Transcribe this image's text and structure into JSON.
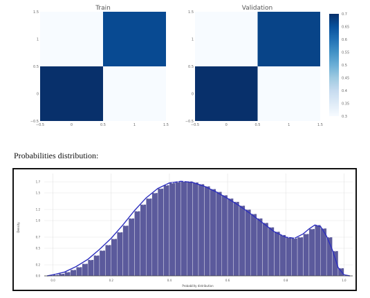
{
  "caption": "Probabilities distribution:",
  "chart_data": [
    {
      "type": "heatmap",
      "title": "Train",
      "x": [
        0,
        1
      ],
      "y": [
        0,
        1
      ],
      "z": [
        [
          0.72,
          0.3
        ],
        [
          0.3,
          0.66
        ]
      ],
      "xlim": [
        -0.5,
        1.5
      ],
      "ylim": [
        -0.5,
        1.5
      ],
      "xticks": [
        "−0.5",
        "0",
        "0.5",
        "1",
        "1.5"
      ],
      "yticks": [
        "−0.5",
        "0",
        "0.5",
        "1",
        "1.5"
      ]
    },
    {
      "type": "heatmap",
      "title": "Validation",
      "x": [
        0,
        1
      ],
      "y": [
        0,
        1
      ],
      "z": [
        [
          0.72,
          0.3
        ],
        [
          0.3,
          0.67
        ]
      ],
      "xlim": [
        -0.5,
        1.5
      ],
      "ylim": [
        -0.5,
        1.5
      ],
      "xticks": [
        "−0.5",
        "0",
        "0.5",
        "1",
        "1.5"
      ],
      "yticks": [
        "−0.5",
        "0",
        "0.5",
        "1",
        "1.5"
      ],
      "colorbar": {
        "range": [
          0.3,
          0.7
        ],
        "ticks": [
          "0.3",
          "0.35",
          "0.4",
          "0.45",
          "0.5",
          "0.55",
          "0.6",
          "0.65",
          "0.7"
        ],
        "colors": [
          "#f7fbff",
          "#deebf7",
          "#c6dbef",
          "#9ecae1",
          "#6baed6",
          "#4292c6",
          "#2171b5",
          "#08519c",
          "#08306b"
        ]
      }
    },
    {
      "type": "bar",
      "title": "",
      "xlabel": "Probability distribution",
      "ylabel": "Density",
      "xlim": [
        -0.03,
        1.03
      ],
      "ylim": [
        0,
        1.85
      ],
      "xticks": [
        "0.0",
        "0.2",
        "0.4",
        "0.6",
        "0.8",
        "1.0"
      ],
      "yticks": [
        "0.0",
        "0.2",
        "0.5",
        "0.7",
        "1.0",
        "1.2",
        "1.5",
        "1.7"
      ],
      "grid": true,
      "bar_color": "#5b5a9c",
      "line_color": "#2d2fbf",
      "bins": [
        0.0,
        0.02,
        0.04,
        0.06,
        0.08,
        0.1,
        0.12,
        0.14,
        0.16,
        0.18,
        0.2,
        0.22,
        0.24,
        0.26,
        0.28,
        0.3,
        0.32,
        0.34,
        0.36,
        0.38,
        0.4,
        0.42,
        0.44,
        0.46,
        0.48,
        0.5,
        0.52,
        0.54,
        0.56,
        0.58,
        0.6,
        0.62,
        0.64,
        0.66,
        0.68,
        0.7,
        0.72,
        0.74,
        0.76,
        0.78,
        0.8,
        0.82,
        0.84,
        0.86,
        0.88,
        0.9,
        0.92,
        0.94,
        0.96,
        0.98
      ],
      "values": [
        0.02,
        0.04,
        0.07,
        0.11,
        0.16,
        0.22,
        0.29,
        0.37,
        0.46,
        0.56,
        0.67,
        0.79,
        0.91,
        1.04,
        1.17,
        1.29,
        1.4,
        1.5,
        1.58,
        1.64,
        1.68,
        1.7,
        1.71,
        1.71,
        1.69,
        1.66,
        1.62,
        1.57,
        1.52,
        1.46,
        1.4,
        1.34,
        1.27,
        1.2,
        1.12,
        1.04,
        0.96,
        0.88,
        0.8,
        0.74,
        0.7,
        0.68,
        0.7,
        0.76,
        0.85,
        0.92,
        0.86,
        0.7,
        0.45,
        0.14
      ],
      "kde_x": [
        -0.02,
        0.0,
        0.04,
        0.08,
        0.12,
        0.16,
        0.2,
        0.24,
        0.28,
        0.32,
        0.36,
        0.4,
        0.44,
        0.48,
        0.52,
        0.56,
        0.6,
        0.64,
        0.68,
        0.72,
        0.76,
        0.8,
        0.83,
        0.86,
        0.88,
        0.9,
        0.92,
        0.94,
        0.96,
        0.98,
        1.0,
        1.02
      ],
      "kde_y": [
        0.0,
        0.02,
        0.07,
        0.17,
        0.3,
        0.48,
        0.68,
        0.92,
        1.18,
        1.41,
        1.58,
        1.68,
        1.71,
        1.69,
        1.62,
        1.52,
        1.4,
        1.27,
        1.12,
        0.96,
        0.8,
        0.7,
        0.68,
        0.76,
        0.85,
        0.92,
        0.89,
        0.72,
        0.47,
        0.15,
        0.02,
        0.0
      ]
    }
  ]
}
